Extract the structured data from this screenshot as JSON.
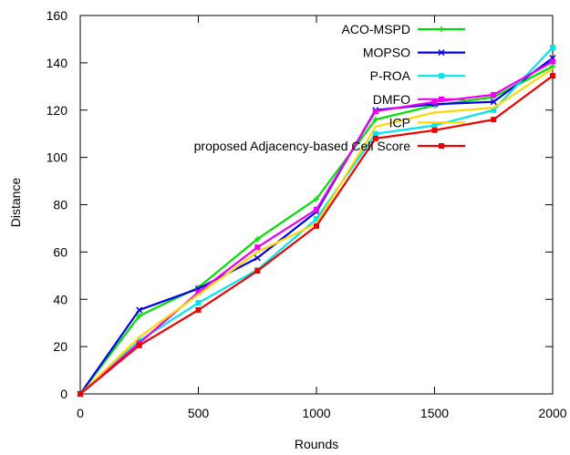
{
  "chart_data": {
    "type": "line",
    "title": "",
    "xlabel": "Rounds",
    "ylabel": "Distance",
    "xlim": [
      0,
      2000
    ],
    "ylim": [
      0,
      160
    ],
    "xticks": [
      0,
      500,
      1000,
      1500,
      2000
    ],
    "yticks": [
      0,
      20,
      40,
      60,
      80,
      100,
      120,
      140,
      160
    ],
    "grid": false,
    "legend_position": "top-right",
    "x": [
      0,
      250,
      500,
      750,
      1000,
      1250,
      1500,
      1750,
      2000
    ],
    "series": [
      {
        "name": "ACO-MSPD",
        "color": "#00e000",
        "marker": "plus",
        "values": [
          0,
          33,
          45,
          65.5,
          82.5,
          116,
          122,
          125.5,
          138.5
        ]
      },
      {
        "name": "MOPSO",
        "color": "#0000ee",
        "marker": "x",
        "values": [
          0,
          35.5,
          44.5,
          57.5,
          77,
          120,
          122.5,
          123.5,
          142
        ]
      },
      {
        "name": "P-ROA",
        "color": "#00e5ee",
        "marker": "square",
        "values": [
          0,
          22.5,
          38.5,
          52.5,
          74,
          110,
          113.5,
          120,
          146.5
        ]
      },
      {
        "name": "DMFO",
        "color": "#ee00ee",
        "marker": "square",
        "values": [
          0,
          21.5,
          43,
          62,
          78,
          119.5,
          123.5,
          126.5,
          140.5
        ]
      },
      {
        "name": "ICP",
        "color": "#ffd700",
        "marker": "none",
        "values": [
          0,
          24,
          42,
          60,
          72,
          113,
          119,
          121,
          137.5
        ]
      },
      {
        "name": "proposed Adjacency-based Cell Score",
        "color": "#ee0000",
        "marker": "square",
        "values": [
          0,
          20.5,
          35.5,
          52,
          71,
          108,
          111.5,
          116,
          134.5
        ]
      }
    ]
  }
}
